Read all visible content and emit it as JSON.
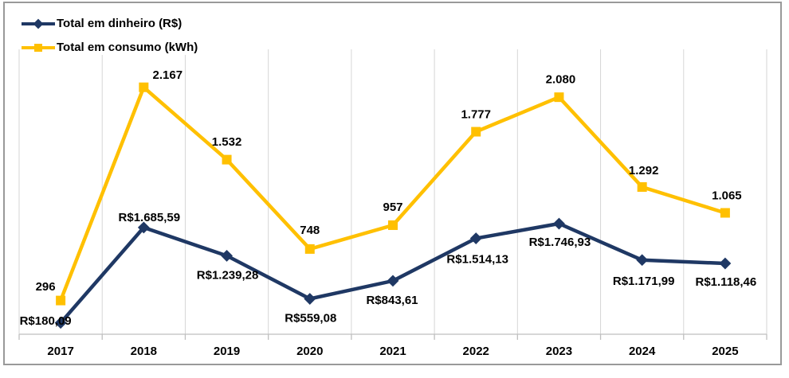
{
  "colors": {
    "dinheiro_line": "#1F3864",
    "consumo_line": "#FFC000",
    "gridline": "#D6D6D6",
    "axis_line": "#BFBFBF",
    "label_text": "#000000",
    "frame_border": "#999999",
    "background": "#FFFFFF"
  },
  "chart_data": {
    "type": "line",
    "categories": [
      "2017",
      "2018",
      "2019",
      "2020",
      "2021",
      "2022",
      "2023",
      "2024",
      "2025"
    ],
    "series": [
      {
        "id": "dinheiro",
        "name": "Total em dinheiro (R$)",
        "color": "#1F3864",
        "marker": "diamond",
        "axis": "primary_y",
        "values": [
          180.09,
          1685.59,
          1239.28,
          559.08,
          843.61,
          1514.13,
          1746.93,
          1171.99,
          1118.46
        ],
        "labels": [
          "R$180,09",
          "R$1.685,59",
          "R$1.239,28",
          "R$559,08",
          "R$843,61",
          "R$1.514,13",
          "R$1.746,93",
          "R$1.171,99",
          "R$1.118,46"
        ]
      },
      {
        "id": "consumo",
        "name": "Total em consumo (kWh)",
        "color": "#FFC000",
        "marker": "square",
        "axis": "secondary_y",
        "values": [
          296,
          2167,
          1532,
          748,
          957,
          1777,
          2080,
          1292,
          1065
        ],
        "labels": [
          "296",
          "2.167",
          "1.532",
          "748",
          "957",
          "1.777",
          "2.080",
          "1.292",
          "1.065"
        ]
      }
    ],
    "axes": {
      "x": {
        "type": "category",
        "labels_visible": true
      },
      "primary_y": {
        "min": 0,
        "max": 4500,
        "visible": false
      },
      "secondary_y": {
        "min": 0,
        "max": 2500,
        "visible": false
      }
    },
    "grid": "vertical-only",
    "legend_position": "top-left",
    "title": ""
  }
}
